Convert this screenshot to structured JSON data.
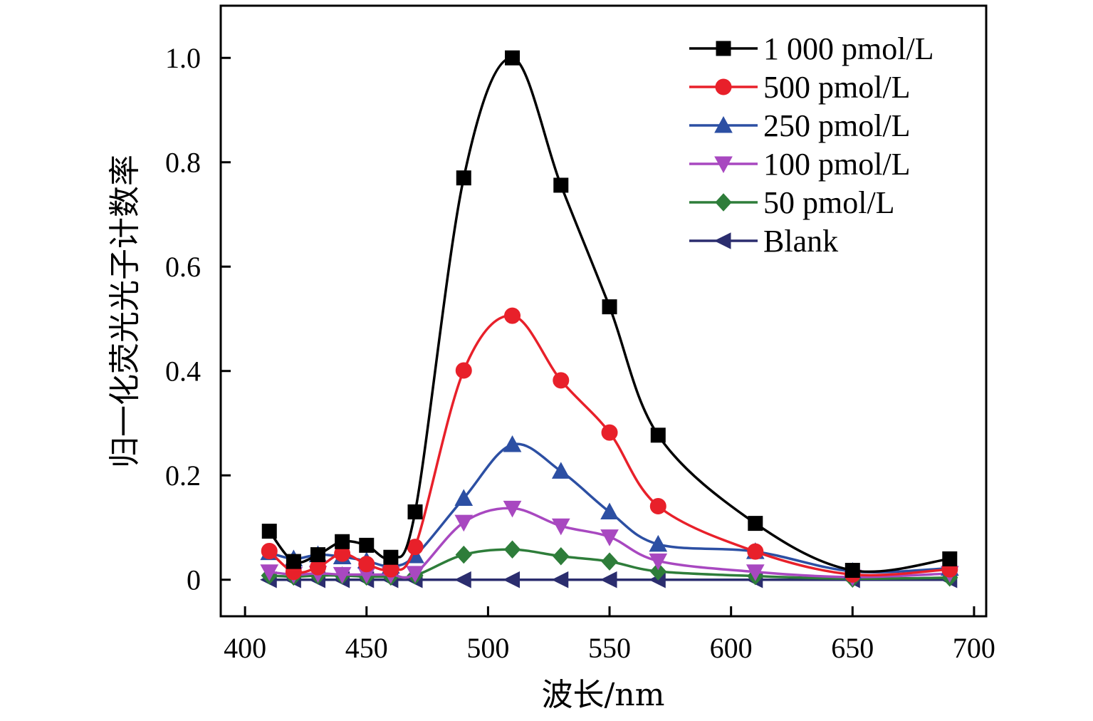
{
  "chart_data": {
    "type": "line",
    "title": "",
    "xlabel": "波长/nm",
    "ylabel": "归一化荧光光子计数率",
    "xlim": [
      390,
      705
    ],
    "ylim": [
      -0.07,
      1.1
    ],
    "xticks": [
      400,
      450,
      500,
      550,
      600,
      650,
      700
    ],
    "xtick_labels": [
      "400",
      "450",
      "500",
      "550",
      "600",
      "650",
      "700"
    ],
    "yticks": [
      0,
      0.2,
      0.4,
      0.6,
      0.8,
      1.0
    ],
    "ytick_labels": [
      "0",
      "0.2",
      "0.4",
      "0.6",
      "0.8",
      "1.0"
    ],
    "grid": false,
    "legend_position": "top-right",
    "x": [
      410,
      420,
      430,
      440,
      450,
      460,
      470,
      490,
      510,
      530,
      550,
      570,
      610,
      650,
      690
    ],
    "series": [
      {
        "name": "1 000 pmol/L",
        "color": "#000000",
        "marker": "square",
        "values": [
          0.093,
          0.035,
          0.048,
          0.073,
          0.066,
          0.043,
          0.13,
          0.77,
          1.0,
          0.756,
          0.523,
          0.277,
          0.108,
          0.018,
          0.04
        ]
      },
      {
        "name": "500 pmol/L",
        "color": "#e8202a",
        "marker": "circle",
        "values": [
          0.055,
          0.015,
          0.024,
          0.05,
          0.03,
          0.02,
          0.063,
          0.401,
          0.506,
          0.382,
          0.282,
          0.141,
          0.054,
          0.01,
          0.02
        ]
      },
      {
        "name": "250 pmol/L",
        "color": "#2c4fa3",
        "marker": "triangle-up",
        "values": [
          0.052,
          0.04,
          0.048,
          0.044,
          0.036,
          0.026,
          0.046,
          0.156,
          0.259,
          0.208,
          0.13,
          0.068,
          0.054,
          0.016,
          0.022
        ]
      },
      {
        "name": "100 pmol/L",
        "color": "#a848c0",
        "marker": "triangle-down",
        "values": [
          0.015,
          0.01,
          0.012,
          0.01,
          0.01,
          0.01,
          0.012,
          0.11,
          0.137,
          0.103,
          0.082,
          0.036,
          0.015,
          0.005,
          0.012
        ]
      },
      {
        "name": "50 pmol/L",
        "color": "#2e7d3a",
        "marker": "diamond",
        "values": [
          0.008,
          0.006,
          0.008,
          0.008,
          0.006,
          0.006,
          0.008,
          0.048,
          0.058,
          0.045,
          0.035,
          0.016,
          0.007,
          0.002,
          0.004
        ]
      },
      {
        "name": "Blank",
        "color": "#2b2d6e",
        "marker": "triangle-left",
        "values": [
          0,
          0,
          0,
          0,
          0,
          0,
          0,
          0,
          0,
          0,
          0,
          0,
          0,
          0,
          0
        ]
      }
    ]
  }
}
